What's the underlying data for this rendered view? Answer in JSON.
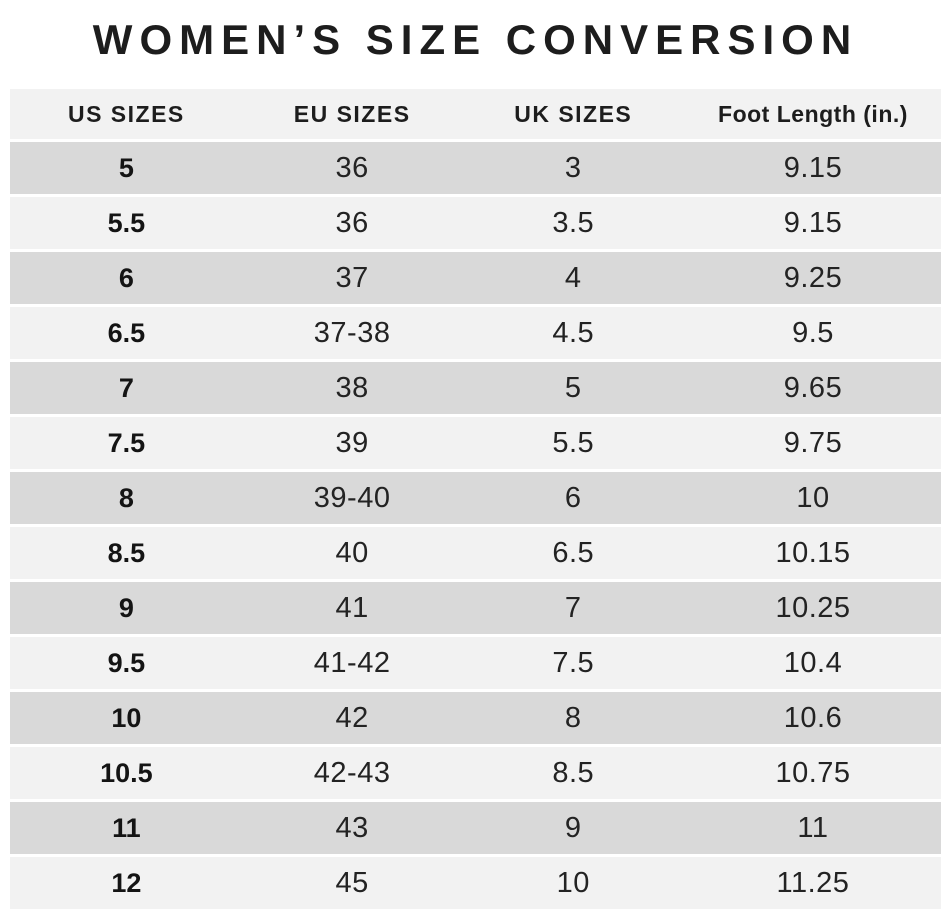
{
  "title": "WOMEN’S SIZE CONVERSION",
  "chart_data": {
    "type": "table",
    "title": "WOMEN’S SIZE CONVERSION",
    "columns": [
      "US SIZES",
      "EU SIZES",
      "UK SIZES",
      "Foot Length (in.)"
    ],
    "rows": [
      [
        "5",
        "36",
        "3",
        "9.15"
      ],
      [
        "5.5",
        "36",
        "3.5",
        "9.15"
      ],
      [
        "6",
        "37",
        "4",
        "9.25"
      ],
      [
        "6.5",
        "37-38",
        "4.5",
        "9.5"
      ],
      [
        "7",
        "38",
        "5",
        "9.65"
      ],
      [
        "7.5",
        "39",
        "5.5",
        "9.75"
      ],
      [
        "8",
        "39-40",
        "6",
        "10"
      ],
      [
        "8.5",
        "40",
        "6.5",
        "10.15"
      ],
      [
        "9",
        "41",
        "7",
        "10.25"
      ],
      [
        "9.5",
        "41-42",
        "7.5",
        "10.4"
      ],
      [
        "10",
        "42",
        "8",
        "10.6"
      ],
      [
        "10.5",
        "42-43",
        "8.5",
        "10.75"
      ],
      [
        "11",
        "43",
        "9",
        "11"
      ],
      [
        "12",
        "45",
        "10",
        "11.25"
      ]
    ],
    "layout": {
      "row_striping": "alternating starting dark",
      "grid": "horizontal white separators only"
    }
  },
  "colors": {
    "background": "#ffffff",
    "header_bg": "#f2f2f2",
    "row_dark": "#d9d9d9",
    "row_light": "#f2f2f2",
    "separator": "#ffffff",
    "text": "#1d1d1d"
  }
}
